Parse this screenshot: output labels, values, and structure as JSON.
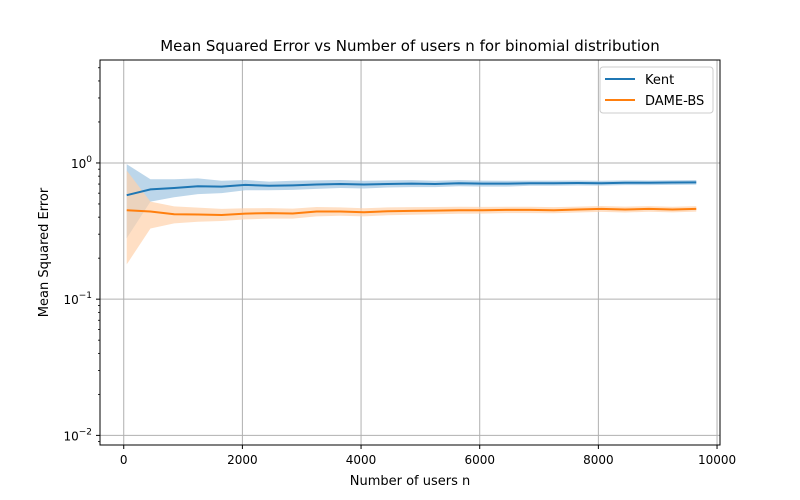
{
  "chart_data": {
    "type": "line",
    "title": "Mean Squared Error vs Number of users n for binomial distribution",
    "xlabel": "Number of users n",
    "ylabel": "Mean Squared Error",
    "xlim": [
      -400,
      10050
    ],
    "ylim": [
      0.0085,
      5.7
    ],
    "yscale": "log",
    "grid": true,
    "legend_position": "top-right",
    "xticks": [
      0,
      2000,
      4000,
      6000,
      8000,
      10000
    ],
    "xtick_labels": [
      "0",
      "2000",
      "4000",
      "6000",
      "8000",
      "10000"
    ],
    "yticks": [
      0.01,
      0.1,
      1
    ],
    "ytick_labels": [
      "10^-2",
      "10^-1",
      "10^0"
    ],
    "x": [
      50,
      450,
      850,
      1250,
      1650,
      2050,
      2450,
      2850,
      3250,
      3650,
      4050,
      4450,
      4850,
      5250,
      5650,
      6050,
      6450,
      6850,
      7250,
      7650,
      8050,
      8450,
      8850,
      9250,
      9650
    ],
    "series": [
      {
        "name": "Kent",
        "color": "#1f77b4",
        "band_color": "#a6c8e3",
        "values": [
          0.58,
          0.64,
          0.655,
          0.675,
          0.67,
          0.69,
          0.68,
          0.685,
          0.695,
          0.7,
          0.695,
          0.7,
          0.705,
          0.7,
          0.71,
          0.705,
          0.705,
          0.71,
          0.71,
          0.712,
          0.71,
          0.715,
          0.715,
          0.718,
          0.72
        ],
        "lower": [
          0.28,
          0.52,
          0.56,
          0.59,
          0.6,
          0.63,
          0.63,
          0.635,
          0.645,
          0.655,
          0.65,
          0.66,
          0.665,
          0.665,
          0.675,
          0.67,
          0.67,
          0.68,
          0.68,
          0.683,
          0.682,
          0.687,
          0.688,
          0.69,
          0.693
        ],
        "upper": [
          0.98,
          0.76,
          0.76,
          0.77,
          0.74,
          0.75,
          0.73,
          0.74,
          0.745,
          0.75,
          0.74,
          0.745,
          0.748,
          0.74,
          0.748,
          0.742,
          0.74,
          0.742,
          0.742,
          0.743,
          0.74,
          0.745,
          0.744,
          0.746,
          0.749
        ]
      },
      {
        "name": "DAME-BS",
        "color": "#ff7f0e",
        "band_color": "#ffd2ab",
        "values": [
          0.45,
          0.44,
          0.42,
          0.418,
          0.415,
          0.425,
          0.428,
          0.426,
          0.44,
          0.44,
          0.435,
          0.442,
          0.445,
          0.447,
          0.45,
          0.45,
          0.452,
          0.452,
          0.45,
          0.455,
          0.46,
          0.455,
          0.46,
          0.455,
          0.46
        ],
        "lower": [
          0.18,
          0.33,
          0.36,
          0.37,
          0.375,
          0.385,
          0.39,
          0.39,
          0.405,
          0.41,
          0.405,
          0.413,
          0.417,
          0.42,
          0.424,
          0.425,
          0.428,
          0.428,
          0.427,
          0.433,
          0.437,
          0.433,
          0.438,
          0.434,
          0.439
        ],
        "upper": [
          0.88,
          0.52,
          0.48,
          0.47,
          0.46,
          0.465,
          0.466,
          0.462,
          0.475,
          0.472,
          0.465,
          0.472,
          0.474,
          0.475,
          0.477,
          0.476,
          0.477,
          0.477,
          0.474,
          0.478,
          0.483,
          0.478,
          0.482,
          0.477,
          0.482
        ]
      }
    ]
  }
}
